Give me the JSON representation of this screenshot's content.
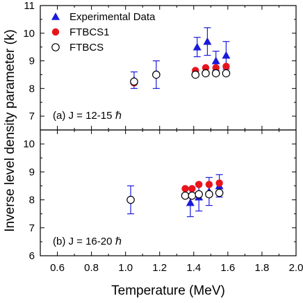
{
  "chart_data": {
    "type": "scatter",
    "xlabel": "Temperature (MeV)",
    "ylabel": "Inverse level density parameter (k)",
    "xlim": [
      0.5,
      2.0
    ],
    "x_ticks": [
      "0.6",
      "0.8",
      "1.0",
      "1.2",
      "1.4",
      "1.6",
      "1.8",
      "2.0"
    ],
    "x_tick_values": [
      0.6,
      0.8,
      1.0,
      1.2,
      1.4,
      1.6,
      1.8,
      2.0
    ],
    "legend": {
      "placement": "top-left",
      "entries": [
        {
          "label": "Experimental Data",
          "marker": "triangle",
          "color": "#1a1adb"
        },
        {
          "label": "FTBCS1",
          "marker": "filled-circle",
          "color": "#e8141c"
        },
        {
          "label": "FTBCS",
          "marker": "open-circle",
          "color": "#000000"
        }
      ]
    },
    "panels": [
      {
        "label": "(a) J = 12-15 ℏ",
        "ylim": [
          6.5,
          11
        ],
        "y_ticks": [
          "7",
          "8",
          "9",
          "10",
          "11"
        ],
        "y_tick_values": [
          7,
          8,
          9,
          10,
          11
        ],
        "series": [
          {
            "name": "Experimental Data",
            "color": "#1a1adb",
            "marker": "triangle",
            "points": [
              {
                "x": 1.05,
                "y": 8.3,
                "err": 0.3
              },
              {
                "x": 1.42,
                "y": 9.5,
                "err": 0.35
              },
              {
                "x": 1.48,
                "y": 9.7,
                "err": 0.5
              },
              {
                "x": 1.53,
                "y": 9.0,
                "err": 0.35
              },
              {
                "x": 1.59,
                "y": 9.2,
                "err": 0.5
              }
            ]
          },
          {
            "name": "FTBCS1",
            "color": "#e8141c",
            "marker": "filled-circle",
            "points": [
              {
                "x": 1.05,
                "y": 8.2
              },
              {
                "x": 1.41,
                "y": 8.65
              },
              {
                "x": 1.47,
                "y": 8.75
              },
              {
                "x": 1.53,
                "y": 8.75
              },
              {
                "x": 1.59,
                "y": 8.8
              }
            ]
          },
          {
            "name": "FTBCS",
            "color": "#000000",
            "marker": "open-circle",
            "points": [
              {
                "x": 1.05,
                "y": 8.25
              },
              {
                "x": 1.18,
                "y": 8.5,
                "err": 0.5
              },
              {
                "x": 1.41,
                "y": 8.5
              },
              {
                "x": 1.47,
                "y": 8.55
              },
              {
                "x": 1.53,
                "y": 8.55
              },
              {
                "x": 1.59,
                "y": 8.55
              }
            ]
          }
        ]
      },
      {
        "label": "(b) J = 16-20 ℏ",
        "ylim": [
          6,
          10.5
        ],
        "y_ticks": [
          "6",
          "7",
          "8",
          "9",
          "10"
        ],
        "y_tick_values": [
          6,
          7,
          8,
          9,
          10
        ],
        "series": [
          {
            "name": "Experimental Data",
            "color": "#1a1adb",
            "marker": "triangle",
            "points": [
              {
                "x": 1.38,
                "y": 7.9,
                "err": 0.5
              },
              {
                "x": 1.43,
                "y": 8.1,
                "err": 0.5
              },
              {
                "x": 1.49,
                "y": 8.3,
                "err": 0.5
              },
              {
                "x": 1.55,
                "y": 8.5,
                "err": 0.4
              }
            ]
          },
          {
            "name": "FTBCS1",
            "color": "#e8141c",
            "marker": "filled-circle",
            "points": [
              {
                "x": 1.35,
                "y": 8.4
              },
              {
                "x": 1.39,
                "y": 8.4
              },
              {
                "x": 1.43,
                "y": 8.55
              },
              {
                "x": 1.49,
                "y": 8.55
              },
              {
                "x": 1.55,
                "y": 8.6
              }
            ]
          },
          {
            "name": "FTBCS",
            "color": "#000000",
            "marker": "open-circle",
            "points": [
              {
                "x": 1.03,
                "y": 8.0,
                "err": 0.5
              },
              {
                "x": 1.35,
                "y": 8.15
              },
              {
                "x": 1.39,
                "y": 8.15
              },
              {
                "x": 1.43,
                "y": 8.2
              },
              {
                "x": 1.49,
                "y": 8.2
              },
              {
                "x": 1.55,
                "y": 8.25
              }
            ]
          }
        ]
      }
    ]
  }
}
